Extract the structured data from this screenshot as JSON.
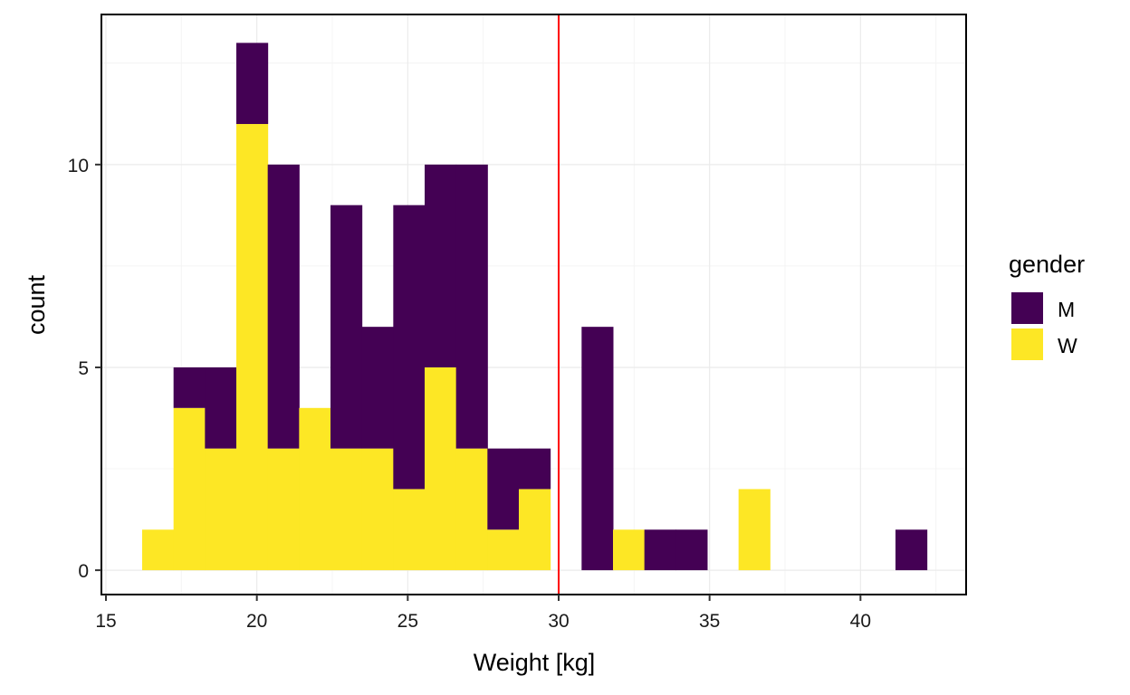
{
  "chart_data": {
    "type": "bar",
    "subtype": "stacked-histogram",
    "title": "",
    "xlabel": "Weight  [kg]",
    "ylabel": "count",
    "xlim": [
      14.85,
      43.5
    ],
    "ylim": [
      -0.6,
      13.7
    ],
    "x_ticks": [
      15,
      20,
      25,
      30,
      35,
      40
    ],
    "y_ticks": [
      0,
      5,
      10
    ],
    "grid": true,
    "legend": {
      "title": "gender",
      "position": "right",
      "entries": [
        {
          "label": "M",
          "color": "#440154"
        },
        {
          "label": "W",
          "color": "#FDE725"
        }
      ]
    },
    "bin_width": 1.04,
    "bin_starts": [
      16.2,
      17.24,
      18.28,
      19.32,
      20.36,
      21.4,
      22.44,
      23.48,
      24.52,
      25.56,
      26.6,
      27.64,
      28.68,
      29.72,
      30.76,
      31.8,
      32.84,
      33.88,
      34.92,
      35.96,
      37.0,
      38.04,
      39.08,
      40.12,
      41.16
    ],
    "series": [
      {
        "name": "W",
        "color": "#FDE725",
        "values": [
          1,
          4,
          3,
          11,
          3,
          4,
          3,
          3,
          2,
          5,
          3,
          1,
          2,
          0,
          0,
          1,
          0,
          0,
          0,
          2,
          0,
          0,
          0,
          0,
          0
        ]
      },
      {
        "name": "M",
        "color": "#440154",
        "values": [
          0,
          1,
          2,
          2,
          7,
          0,
          6,
          3,
          7,
          5,
          7,
          2,
          1,
          0,
          6,
          0,
          1,
          1,
          0,
          0,
          0,
          0,
          0,
          0,
          1
        ]
      }
    ],
    "reference_line": {
      "orientation": "vertical",
      "x": 30,
      "color": "#FF0000"
    }
  },
  "colors": {
    "grid_major": "#ebebeb",
    "grid_minor": "#f4f4f4",
    "panel_border": "#000000"
  }
}
